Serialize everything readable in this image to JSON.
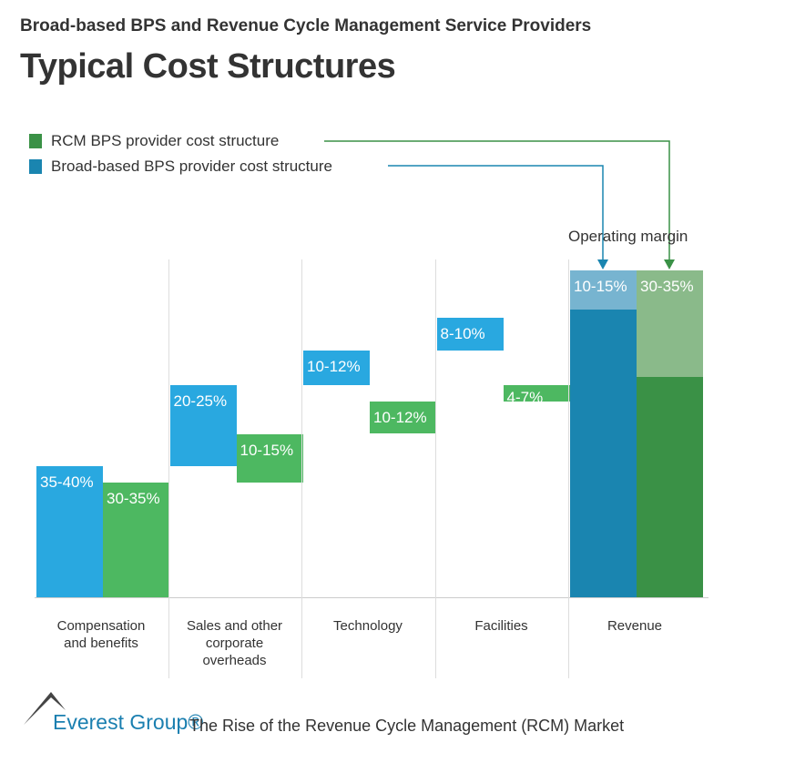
{
  "header": {
    "subtitle": "Broad-based BPS and Revenue Cycle Management Service Providers",
    "title": "Typical Cost Structures"
  },
  "chart_data": {
    "type": "bar",
    "subtype": "waterfall",
    "categories": [
      "Compensation and benefits",
      "Sales and other corporate overheads",
      "Technology",
      "Facilities",
      "Revenue"
    ],
    "category_lines": [
      [
        "Compensation",
        "and benefits"
      ],
      [
        "Sales and other",
        "corporate",
        "overheads"
      ],
      [
        "Technology"
      ],
      [
        "Facilities"
      ],
      [
        "Revenue"
      ]
    ],
    "unit": "% of revenue",
    "ylim": [
      0,
      100
    ],
    "grid": "vertical separators",
    "legend_placement": "top-left",
    "annotation": "Operating margin",
    "series": [
      {
        "name": "RCM BPS provider cost structure",
        "color": "#4db861",
        "revenue_color": "#3a9146",
        "margin_color": "#8aba8a",
        "labels": [
          "30-35%",
          "10-15%",
          "10-12%",
          "4-7%"
        ],
        "ranges": [
          [
            0,
            35
          ],
          [
            35,
            50
          ],
          [
            50,
            60
          ],
          [
            60,
            65
          ]
        ],
        "revenue_base": [
          0,
          67.5
        ],
        "margin": [
          67.5,
          100
        ],
        "margin_label": "30-35%"
      },
      {
        "name": "Broad-based BPS provider cost structure",
        "color": "#29a8e0",
        "revenue_color": "#1a85b0",
        "margin_color": "#77b4d0",
        "labels": [
          "35-40%",
          "20-25%",
          "10-12%",
          "8-10%"
        ],
        "ranges": [
          [
            0,
            40
          ],
          [
            40,
            65
          ],
          [
            65,
            75.5
          ],
          [
            75.5,
            85.5
          ]
        ],
        "revenue_base": [
          0,
          88
        ],
        "margin": [
          88,
          100
        ],
        "margin_label": "10-15%"
      }
    ]
  },
  "footer": {
    "logo": "Everest Group®",
    "report_title": "The Rise of the Revenue Cycle Management (RCM) Market"
  }
}
